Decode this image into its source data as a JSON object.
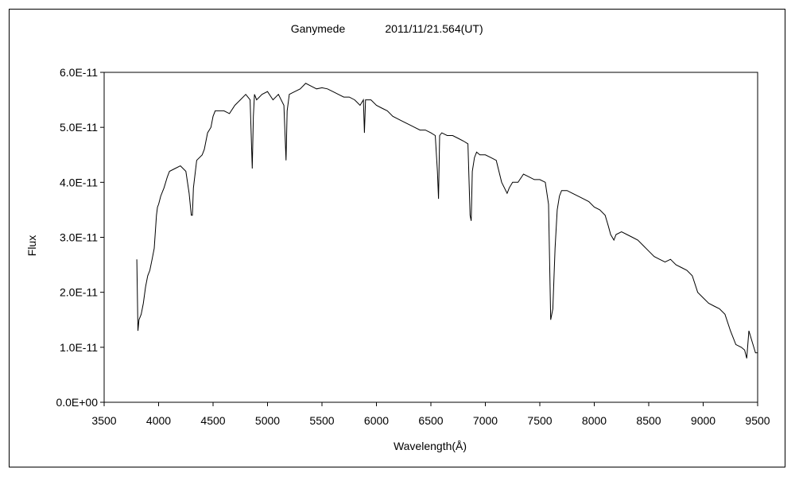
{
  "chart_data": {
    "type": "line",
    "title": "Ganymede",
    "subtitle": "2011/11/21.564(UT)",
    "xlabel": "Wavelength(Å)",
    "ylabel": "Flux",
    "xlim": [
      3500,
      9500
    ],
    "ylim": [
      0,
      6e-11
    ],
    "grid": false,
    "x_ticks": [
      3500,
      4000,
      4500,
      5000,
      5500,
      6000,
      6500,
      7000,
      7500,
      8000,
      8500,
      9000,
      9500
    ],
    "x_tick_labels": [
      "3500",
      "4000",
      "4500",
      "5000",
      "5500",
      "6000",
      "6500",
      "7000",
      "7500",
      "8000",
      "8500",
      "9000",
      "9500"
    ],
    "y_ticks": [
      0,
      1e-11,
      2e-11,
      3e-11,
      4e-11,
      5e-11,
      6e-11
    ],
    "y_tick_labels": [
      "0.0E+00",
      "1.0E-11",
      "2.0E-11",
      "3.0E-11",
      "4.0E-11",
      "5.0E-11",
      "6.0E-11"
    ],
    "series": [
      {
        "color": "#000000",
        "x": [
          3800,
          3810,
          3820,
          3840,
          3860,
          3880,
          3900,
          3920,
          3940,
          3960,
          3980,
          3990,
          4000,
          4020,
          4050,
          4080,
          4100,
          4150,
          4200,
          4250,
          4280,
          4300,
          4310,
          4320,
          4350,
          4400,
          4420,
          4450,
          4480,
          4500,
          4520,
          4550,
          4600,
          4650,
          4700,
          4750,
          4800,
          4840,
          4860,
          4870,
          4880,
          4900,
          4950,
          5000,
          5050,
          5100,
          5150,
          5170,
          5180,
          5200,
          5250,
          5300,
          5350,
          5400,
          5450,
          5500,
          5550,
          5600,
          5650,
          5700,
          5750,
          5800,
          5850,
          5880,
          5890,
          5900,
          5950,
          6000,
          6050,
          6100,
          6150,
          6200,
          6250,
          6300,
          6350,
          6400,
          6450,
          6500,
          6540,
          6560,
          6570,
          6580,
          6600,
          6650,
          6700,
          6750,
          6800,
          6840,
          6860,
          6870,
          6880,
          6900,
          6920,
          6950,
          7000,
          7050,
          7100,
          7150,
          7200,
          7220,
          7250,
          7300,
          7350,
          7400,
          7450,
          7500,
          7550,
          7580,
          7600,
          7620,
          7640,
          7660,
          7680,
          7700,
          7750,
          7800,
          7850,
          7900,
          7950,
          8000,
          8050,
          8100,
          8130,
          8150,
          8180,
          8200,
          8250,
          8300,
          8350,
          8400,
          8450,
          8500,
          8550,
          8600,
          8650,
          8700,
          8750,
          8800,
          8850,
          8900,
          8950,
          9000,
          9050,
          9100,
          9150,
          9200,
          9250,
          9300,
          9350,
          9380,
          9400,
          9420,
          9450,
          9480,
          9500
        ],
        "values": [
          2.6e-11,
          1.3e-11,
          1.5e-11,
          1.6e-11,
          1.8e-11,
          2.1e-11,
          2.3e-11,
          2.4e-11,
          2.6e-11,
          2.8e-11,
          3.4e-11,
          3.55e-11,
          3.6e-11,
          3.75e-11,
          3.9e-11,
          4.1e-11,
          4.2e-11,
          4.25e-11,
          4.3e-11,
          4.2e-11,
          3.8e-11,
          3.4e-11,
          3.4e-11,
          3.9e-11,
          4.4e-11,
          4.5e-11,
          4.6e-11,
          4.9e-11,
          5e-11,
          5.2e-11,
          5.3e-11,
          5.3e-11,
          5.3e-11,
          5.25e-11,
          5.4e-11,
          5.5e-11,
          5.6e-11,
          5.5e-11,
          4.25e-11,
          5.2e-11,
          5.6e-11,
          5.5e-11,
          5.6e-11,
          5.65e-11,
          5.5e-11,
          5.6e-11,
          5.4e-11,
          4.4e-11,
          5.3e-11,
          5.6e-11,
          5.65e-11,
          5.7e-11,
          5.8e-11,
          5.75e-11,
          5.7e-11,
          5.72e-11,
          5.7e-11,
          5.65e-11,
          5.6e-11,
          5.55e-11,
          5.55e-11,
          5.5e-11,
          5.4e-11,
          5.5e-11,
          4.9e-11,
          5.5e-11,
          5.5e-11,
          5.4e-11,
          5.35e-11,
          5.3e-11,
          5.2e-11,
          5.15e-11,
          5.1e-11,
          5.05e-11,
          5e-11,
          4.95e-11,
          4.95e-11,
          4.9e-11,
          4.85e-11,
          4.2e-11,
          3.7e-11,
          4.85e-11,
          4.9e-11,
          4.85e-11,
          4.85e-11,
          4.8e-11,
          4.75e-11,
          4.7e-11,
          3.4e-11,
          3.3e-11,
          4.2e-11,
          4.45e-11,
          4.55e-11,
          4.5e-11,
          4.5e-11,
          4.45e-11,
          4.4e-11,
          4e-11,
          3.8e-11,
          3.9e-11,
          4e-11,
          4e-11,
          4.15e-11,
          4.1e-11,
          4.05e-11,
          4.05e-11,
          4e-11,
          3.6e-11,
          1.5e-11,
          1.7e-11,
          2.8e-11,
          3.5e-11,
          3.75e-11,
          3.85e-11,
          3.85e-11,
          3.8e-11,
          3.75e-11,
          3.7e-11,
          3.65e-11,
          3.55e-11,
          3.5e-11,
          3.4e-11,
          3.2e-11,
          3.05e-11,
          2.95e-11,
          3.05e-11,
          3.1e-11,
          3.05e-11,
          3e-11,
          2.95e-11,
          2.85e-11,
          2.75e-11,
          2.65e-11,
          2.6e-11,
          2.55e-11,
          2.6e-11,
          2.5e-11,
          2.45e-11,
          2.4e-11,
          2.3e-11,
          2e-11,
          1.9e-11,
          1.8e-11,
          1.75e-11,
          1.7e-11,
          1.6e-11,
          1.3e-11,
          1.05e-11,
          1e-11,
          9.5e-12,
          8e-12,
          1.3e-11,
          1.1e-11,
          9e-12,
          9e-12
        ]
      }
    ]
  }
}
